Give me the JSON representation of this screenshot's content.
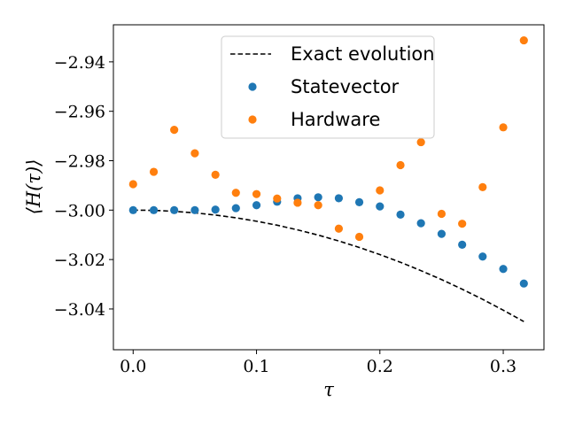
{
  "chart_data": {
    "type": "scatter",
    "xlabel": "τ",
    "ylabel": "⟨H(τ)⟩",
    "xlim": [
      -0.016,
      0.333
    ],
    "ylim": [
      -3.0565,
      -2.925
    ],
    "xticks": [
      0.0,
      0.1,
      0.2,
      0.3
    ],
    "xtick_labels": [
      "0.0",
      "0.1",
      "0.2",
      "0.3"
    ],
    "yticks": [
      -2.94,
      -2.96,
      -2.98,
      -3.0,
      -3.02,
      -3.04
    ],
    "ytick_labels": [
      "−2.94",
      "−2.96",
      "−2.98",
      "−3.00",
      "−3.02",
      "−3.04"
    ],
    "grid": false,
    "legend_position": "upper-center",
    "series": [
      {
        "name": "Exact evolution",
        "kind": "line",
        "style": "dashed",
        "color": "#000000",
        "x": [
          0.0,
          0.0167,
          0.0333,
          0.05,
          0.0667,
          0.0833,
          0.1,
          0.1167,
          0.1333,
          0.15,
          0.1667,
          0.1833,
          0.2,
          0.2167,
          0.2333,
          0.25,
          0.2667,
          0.2833,
          0.3,
          0.3167
        ],
        "y": [
          -3.0,
          -3.0001,
          -3.0005,
          -3.0011,
          -3.002,
          -3.0031,
          -3.0045,
          -3.0061,
          -3.008,
          -3.0101,
          -3.0125,
          -3.0151,
          -3.018,
          -3.0211,
          -3.0245,
          -3.0281,
          -3.032,
          -3.0361,
          -3.0405,
          -3.0451
        ]
      },
      {
        "name": "Statevector",
        "kind": "scatter",
        "color": "#1f77b4",
        "x": [
          0.0,
          0.0167,
          0.0333,
          0.05,
          0.0667,
          0.0833,
          0.1,
          0.1167,
          0.1333,
          0.15,
          0.1667,
          0.1833,
          0.2,
          0.2167,
          0.2333,
          0.25,
          0.2667,
          0.2833,
          0.3,
          0.3167
        ],
        "y": [
          -3.0,
          -3.0,
          -3.0,
          -3.0,
          -2.9998,
          -2.9992,
          -2.998,
          -2.9966,
          -2.9952,
          -2.9948,
          -2.9952,
          -2.9968,
          -2.9985,
          -3.0018,
          -3.0053,
          -3.0096,
          -3.014,
          -3.0188,
          -3.0238,
          -3.0297
        ]
      },
      {
        "name": "Hardware",
        "kind": "scatter",
        "color": "#ff7f0e",
        "x": [
          0.0,
          0.0167,
          0.0333,
          0.05,
          0.0667,
          0.0833,
          0.1,
          0.1167,
          0.1333,
          0.15,
          0.1667,
          0.1833,
          0.2,
          0.2167,
          0.2333,
          0.25,
          0.2667,
          0.2833,
          0.3,
          0.3167
        ],
        "y": [
          -2.9895,
          -2.9845,
          -2.9675,
          -2.977,
          -2.9857,
          -2.993,
          -2.9935,
          -2.9953,
          -2.997,
          -2.998,
          -3.0075,
          -3.0108,
          -2.992,
          -2.9818,
          -2.9725,
          -3.0015,
          -3.0055,
          -2.9907,
          -2.9665,
          -2.9313
        ]
      }
    ]
  }
}
